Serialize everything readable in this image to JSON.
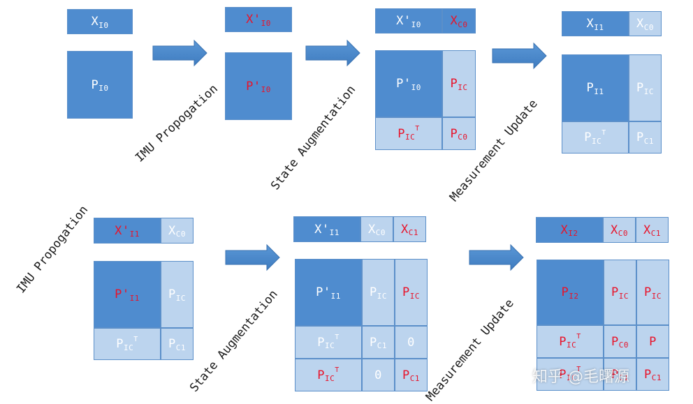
{
  "labels": {
    "imu_propagation": "IMU Propogation",
    "state_augmentation": "State Augmentation",
    "measurement_update": "Measurement Update"
  },
  "watermark": "知乎 @毛曙源",
  "cells": [
    {
      "id": "r1-x-i0",
      "main": "X",
      "sub": "I0",
      "tone": "dark",
      "red": false
    },
    {
      "id": "r1-p-i0",
      "main": "P",
      "sub": "I0",
      "tone": "dark",
      "red": false
    },
    {
      "id": "r1-xp-i0",
      "main": "X'",
      "sub": "I0",
      "tone": "dark",
      "red": true
    },
    {
      "id": "r1-pp-i0",
      "main": "P'",
      "sub": "I0",
      "tone": "dark",
      "red": true
    },
    {
      "id": "r1a-xp-i0",
      "main": "X'",
      "sub": "I0",
      "tone": "dark",
      "red": false
    },
    {
      "id": "r1a-x-c0",
      "main": "X",
      "sub": "C0",
      "tone": "dark",
      "red": true
    },
    {
      "id": "r1a-pp-i0",
      "main": "P'",
      "sub": "I0",
      "tone": "dark",
      "red": false
    },
    {
      "id": "r1a-p-ic",
      "main": "P",
      "sub": "IC",
      "tone": "light",
      "red": true
    },
    {
      "id": "r1a-p-ict",
      "main": "P",
      "sub": "IC",
      "sup": "T",
      "tone": "light",
      "red": true
    },
    {
      "id": "r1a-p-c0",
      "main": "P",
      "sub": "C0",
      "tone": "light",
      "red": true
    },
    {
      "id": "r1u-x-i1",
      "main": "X",
      "sub": "I1",
      "tone": "dark",
      "red": false
    },
    {
      "id": "r1u-x-c0",
      "main": "X",
      "sub": "C0",
      "tone": "light",
      "red": false
    },
    {
      "id": "r1u-p-i1",
      "main": "P",
      "sub": "I1",
      "tone": "dark",
      "red": false
    },
    {
      "id": "r1u-p-ic",
      "main": "P",
      "sub": "IC",
      "tone": "light",
      "red": false
    },
    {
      "id": "r1u-p-ict",
      "main": "P",
      "sub": "IC",
      "sup": "T",
      "tone": "light",
      "red": false
    },
    {
      "id": "r1u-p-c1",
      "main": "P",
      "sub": "C1",
      "tone": "light",
      "red": false
    },
    {
      "id": "r2-xp-i1",
      "main": "X'",
      "sub": "I1",
      "tone": "dark",
      "red": true
    },
    {
      "id": "r2-x-c0",
      "main": "X",
      "sub": "C0",
      "tone": "light",
      "red": false
    },
    {
      "id": "r2-pp-i1",
      "main": "P'",
      "sub": "I1",
      "tone": "dark",
      "red": true
    },
    {
      "id": "r2-p-ic",
      "main": "P",
      "sub": "IC",
      "tone": "light",
      "red": false
    },
    {
      "id": "r2-p-ict",
      "main": "P",
      "sub": "IC",
      "sup": "T",
      "tone": "light",
      "red": false
    },
    {
      "id": "r2-p-c1",
      "main": "P",
      "sub": "C1",
      "tone": "light",
      "red": false
    },
    {
      "id": "r2a-xp-i1",
      "main": "X'",
      "sub": "I1",
      "tone": "dark",
      "red": false
    },
    {
      "id": "r2a-x-c0",
      "main": "X",
      "sub": "C0",
      "tone": "light",
      "red": false
    },
    {
      "id": "r2a-x-c1",
      "main": "X",
      "sub": "C1",
      "tone": "light",
      "red": true
    },
    {
      "id": "r2a-pp-i1",
      "main": "P'",
      "sub": "I1",
      "tone": "dark",
      "red": false
    },
    {
      "id": "r2a-p-ic-a",
      "main": "P",
      "sub": "IC",
      "tone": "light",
      "red": false
    },
    {
      "id": "r2a-p-ic-b",
      "main": "P",
      "sub": "IC",
      "tone": "light",
      "red": true
    },
    {
      "id": "r2a-p-ict-a",
      "main": "P",
      "sub": "IC",
      "sup": "T",
      "tone": "light",
      "red": false
    },
    {
      "id": "r2a-p-c1-a",
      "main": "P",
      "sub": "C1",
      "tone": "light",
      "red": false
    },
    {
      "id": "r2a-zero-a",
      "main": "0",
      "sub": "",
      "tone": "light",
      "red": false
    },
    {
      "id": "r2a-p-ict-b",
      "main": "P",
      "sub": "IC",
      "sup": "T",
      "tone": "light",
      "red": true
    },
    {
      "id": "r2a-zero-b",
      "main": "0",
      "sub": "",
      "tone": "light",
      "red": false
    },
    {
      "id": "r2a-p-c1-b",
      "main": "P",
      "sub": "C1",
      "tone": "light",
      "red": true
    },
    {
      "id": "r2u-x-i2",
      "main": "X",
      "sub": "I2",
      "tone": "dark",
      "red": true
    },
    {
      "id": "r2u-x-c0",
      "main": "X",
      "sub": "C0",
      "tone": "light",
      "red": true
    },
    {
      "id": "r2u-x-c1",
      "main": "X",
      "sub": "C1",
      "tone": "light",
      "red": true
    },
    {
      "id": "r2u-p-i2",
      "main": "P",
      "sub": "I2",
      "tone": "dark",
      "red": true
    },
    {
      "id": "r2u-p-ic-a",
      "main": "P",
      "sub": "IC",
      "tone": "light",
      "red": true
    },
    {
      "id": "r2u-p-ic-b",
      "main": "P",
      "sub": "IC",
      "tone": "light",
      "red": true
    },
    {
      "id": "r2u-p-ict-a",
      "main": "P",
      "sub": "IC",
      "sup": "T",
      "tone": "light",
      "red": true
    },
    {
      "id": "r2u-p-c0",
      "main": "P",
      "sub": "C0",
      "tone": "light",
      "red": true
    },
    {
      "id": "r2u-p",
      "main": "P",
      "sub": "",
      "tone": "light",
      "red": true
    },
    {
      "id": "r2u-p-ict-b",
      "main": "P",
      "sub": "IC",
      "sup": "T",
      "tone": "light",
      "red": true
    },
    {
      "id": "r2u-p-c1-b",
      "main": "P",
      "sub": "C1",
      "tone": "light",
      "red": true
    },
    {
      "id": "r2u-p-c1-c",
      "main": "P",
      "sub": "C1",
      "tone": "light",
      "red": true
    }
  ]
}
